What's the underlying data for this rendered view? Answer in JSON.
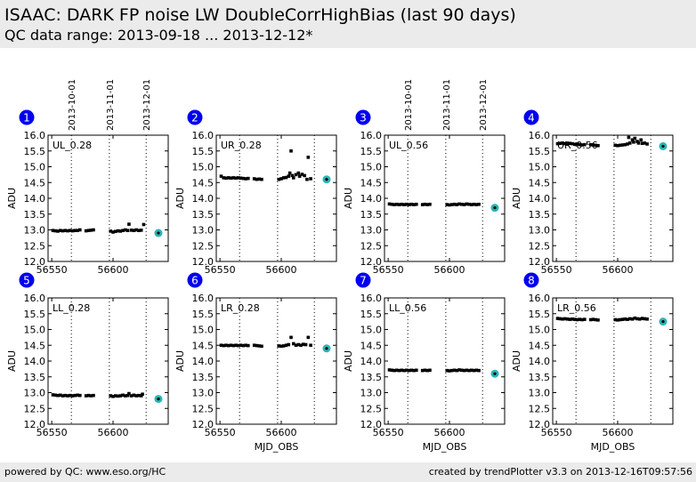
{
  "header": {
    "title": "ISAAC: DARK FP noise LW DoubleCorrHighBias (last 90 days)",
    "subtitle": "QC data range: 2013-09-18 ... 2013-12-12*"
  },
  "footer": {
    "left": "powered by QC: www.eso.org/HC",
    "right": "created by trendPlotter v3.3 on 2013-12-16T09:57:56"
  },
  "colors": {
    "points": "#000000",
    "latest": "#2ab5b5",
    "badge": "#0000ee"
  },
  "chart_data": {
    "type": "scatter",
    "xlabel": "MJD_OBS",
    "ylabel": "ADU",
    "xlim": [
      56547,
      56645
    ],
    "ylim": [
      12.0,
      16.0
    ],
    "xticks": [
      "56550",
      "56600"
    ],
    "xtick_values": [
      56550,
      56600
    ],
    "yticks": [
      "12.0",
      "12.5",
      "13.0",
      "13.5",
      "14.0",
      "14.5",
      "15.0",
      "15.5",
      "16.0"
    ],
    "date_markers": [
      {
        "label": "2013-10-01",
        "mjd": 56566
      },
      {
        "label": "2013-11-01",
        "mjd": 56597
      },
      {
        "label": "2013-12-01",
        "mjd": 56627
      }
    ],
    "panels": [
      {
        "badge": "1",
        "label": "UL_0.28",
        "show_dates": true,
        "show_xlabel": false,
        "points": [
          [
            56551,
            12.98
          ],
          [
            56553,
            12.97
          ],
          [
            56555,
            12.96
          ],
          [
            56557,
            12.98
          ],
          [
            56559,
            12.97
          ],
          [
            56561,
            12.98
          ],
          [
            56563,
            12.97
          ],
          [
            56565,
            12.98
          ],
          [
            56567,
            12.97
          ],
          [
            56569,
            12.98
          ],
          [
            56571,
            12.98
          ],
          [
            56573,
            13.0
          ],
          [
            56578,
            12.97
          ],
          [
            56580,
            12.98
          ],
          [
            56582,
            12.99
          ],
          [
            56584,
            13.0
          ],
          [
            56598,
            12.96
          ],
          [
            56600,
            12.93
          ],
          [
            56602,
            12.95
          ],
          [
            56604,
            12.97
          ],
          [
            56606,
            12.96
          ],
          [
            56608,
            12.98
          ],
          [
            56610,
            13.0
          ],
          [
            56612,
            12.98
          ],
          [
            56613,
            13.18
          ],
          [
            56615,
            12.99
          ],
          [
            56617,
            12.98
          ],
          [
            56619,
            13.0
          ],
          [
            56621,
            12.98
          ],
          [
            56623,
            12.99
          ],
          [
            56625,
            13.17
          ]
        ],
        "latest": [
          56637,
          12.9
        ]
      },
      {
        "badge": "2",
        "label": "UR_0.28",
        "show_dates": false,
        "show_xlabel": false,
        "points": [
          [
            56551,
            14.7
          ],
          [
            56553,
            14.65
          ],
          [
            56555,
            14.64
          ],
          [
            56557,
            14.65
          ],
          [
            56559,
            14.64
          ],
          [
            56561,
            14.65
          ],
          [
            56563,
            14.64
          ],
          [
            56565,
            14.65
          ],
          [
            56567,
            14.64
          ],
          [
            56569,
            14.63
          ],
          [
            56571,
            14.62
          ],
          [
            56573,
            14.63
          ],
          [
            56578,
            14.62
          ],
          [
            56580,
            14.6
          ],
          [
            56582,
            14.61
          ],
          [
            56584,
            14.6
          ],
          [
            56598,
            14.6
          ],
          [
            56600,
            14.62
          ],
          [
            56602,
            14.65
          ],
          [
            56604,
            14.66
          ],
          [
            56606,
            14.7
          ],
          [
            56607,
            14.8
          ],
          [
            56608,
            15.5
          ],
          [
            56609,
            14.72
          ],
          [
            56610,
            14.65
          ],
          [
            56612,
            14.75
          ],
          [
            56614,
            14.8
          ],
          [
            56615,
            14.7
          ],
          [
            56617,
            14.76
          ],
          [
            56619,
            14.72
          ],
          [
            56621,
            14.6
          ],
          [
            56622,
            15.3
          ],
          [
            56624,
            14.62
          ]
        ],
        "latest": [
          56637,
          14.6
        ]
      },
      {
        "badge": "3",
        "label": "UL_0.56",
        "show_dates": true,
        "show_xlabel": false,
        "points": [
          [
            56551,
            13.82
          ],
          [
            56553,
            13.81
          ],
          [
            56555,
            13.8
          ],
          [
            56557,
            13.81
          ],
          [
            56559,
            13.8
          ],
          [
            56561,
            13.81
          ],
          [
            56563,
            13.8
          ],
          [
            56565,
            13.81
          ],
          [
            56567,
            13.8
          ],
          [
            56569,
            13.81
          ],
          [
            56571,
            13.8
          ],
          [
            56573,
            13.81
          ],
          [
            56578,
            13.8
          ],
          [
            56580,
            13.81
          ],
          [
            56582,
            13.8
          ],
          [
            56584,
            13.81
          ],
          [
            56598,
            13.8
          ],
          [
            56600,
            13.79
          ],
          [
            56602,
            13.8
          ],
          [
            56604,
            13.81
          ],
          [
            56606,
            13.8
          ],
          [
            56608,
            13.82
          ],
          [
            56610,
            13.81
          ],
          [
            56612,
            13.8
          ],
          [
            56614,
            13.82
          ],
          [
            56616,
            13.81
          ],
          [
            56618,
            13.8
          ],
          [
            56620,
            13.81
          ],
          [
            56622,
            13.8
          ],
          [
            56624,
            13.81
          ]
        ],
        "latest": [
          56637,
          13.7
        ]
      },
      {
        "badge": "4",
        "label": "UR_0.56",
        "show_dates": false,
        "show_xlabel": false,
        "points": [
          [
            56551,
            15.73
          ],
          [
            56553,
            15.74
          ],
          [
            56555,
            15.75
          ],
          [
            56557,
            15.73
          ],
          [
            56559,
            15.72
          ],
          [
            56561,
            15.74
          ],
          [
            56563,
            15.73
          ],
          [
            56565,
            15.71
          ],
          [
            56567,
            15.72
          ],
          [
            56569,
            15.7
          ],
          [
            56571,
            15.69
          ],
          [
            56573,
            15.7
          ],
          [
            56578,
            15.7
          ],
          [
            56580,
            15.69
          ],
          [
            56582,
            15.68
          ],
          [
            56584,
            15.67
          ],
          [
            56598,
            15.68
          ],
          [
            56600,
            15.67
          ],
          [
            56602,
            15.68
          ],
          [
            56604,
            15.69
          ],
          [
            56606,
            15.7
          ],
          [
            56608,
            15.72
          ],
          [
            56609,
            15.93
          ],
          [
            56610,
            15.75
          ],
          [
            56612,
            15.85
          ],
          [
            56613,
            15.78
          ],
          [
            56614,
            15.9
          ],
          [
            56616,
            15.8
          ],
          [
            56617,
            15.75
          ],
          [
            56619,
            15.85
          ],
          [
            56620,
            15.74
          ],
          [
            56622,
            15.75
          ],
          [
            56624,
            15.72
          ]
        ],
        "latest": [
          56637,
          15.65
        ]
      },
      {
        "badge": "5",
        "label": "LL_0.28",
        "show_dates": false,
        "show_xlabel": false,
        "points": [
          [
            56551,
            12.93
          ],
          [
            56553,
            12.92
          ],
          [
            56555,
            12.91
          ],
          [
            56557,
            12.92
          ],
          [
            56559,
            12.9
          ],
          [
            56561,
            12.91
          ],
          [
            56563,
            12.9
          ],
          [
            56565,
            12.91
          ],
          [
            56567,
            12.9
          ],
          [
            56569,
            12.91
          ],
          [
            56571,
            12.92
          ],
          [
            56573,
            12.91
          ],
          [
            56578,
            12.9
          ],
          [
            56580,
            12.91
          ],
          [
            56582,
            12.9
          ],
          [
            56584,
            12.91
          ],
          [
            56598,
            12.9
          ],
          [
            56600,
            12.88
          ],
          [
            56602,
            12.9
          ],
          [
            56604,
            12.89
          ],
          [
            56606,
            12.9
          ],
          [
            56608,
            12.92
          ],
          [
            56610,
            12.9
          ],
          [
            56612,
            12.91
          ],
          [
            56613,
            12.97
          ],
          [
            56615,
            12.9
          ],
          [
            56617,
            12.92
          ],
          [
            56619,
            12.9
          ],
          [
            56621,
            12.91
          ],
          [
            56623,
            12.9
          ],
          [
            56624,
            12.95
          ]
        ],
        "latest": [
          56637,
          12.8
        ]
      },
      {
        "badge": "6",
        "label": "LR_0.28",
        "show_dates": false,
        "show_xlabel": true,
        "points": [
          [
            56551,
            14.5
          ],
          [
            56553,
            14.49
          ],
          [
            56555,
            14.5
          ],
          [
            56557,
            14.49
          ],
          [
            56559,
            14.5
          ],
          [
            56561,
            14.49
          ],
          [
            56563,
            14.5
          ],
          [
            56565,
            14.49
          ],
          [
            56567,
            14.5
          ],
          [
            56569,
            14.49
          ],
          [
            56571,
            14.5
          ],
          [
            56573,
            14.49
          ],
          [
            56578,
            14.5
          ],
          [
            56580,
            14.49
          ],
          [
            56582,
            14.48
          ],
          [
            56584,
            14.47
          ],
          [
            56598,
            14.48
          ],
          [
            56600,
            14.47
          ],
          [
            56602,
            14.48
          ],
          [
            56604,
            14.5
          ],
          [
            56606,
            14.52
          ],
          [
            56608,
            14.75
          ],
          [
            56610,
            14.55
          ],
          [
            56612,
            14.5
          ],
          [
            56614,
            14.52
          ],
          [
            56616,
            14.5
          ],
          [
            56618,
            14.53
          ],
          [
            56620,
            14.52
          ],
          [
            56622,
            14.75
          ],
          [
            56624,
            14.5
          ]
        ],
        "latest": [
          56637,
          14.4
        ]
      },
      {
        "badge": "7",
        "label": "LL_0.56",
        "show_dates": false,
        "show_xlabel": true,
        "points": [
          [
            56551,
            13.72
          ],
          [
            56553,
            13.71
          ],
          [
            56555,
            13.7
          ],
          [
            56557,
            13.71
          ],
          [
            56559,
            13.7
          ],
          [
            56561,
            13.71
          ],
          [
            56563,
            13.7
          ],
          [
            56565,
            13.71
          ],
          [
            56567,
            13.7
          ],
          [
            56569,
            13.71
          ],
          [
            56571,
            13.7
          ],
          [
            56573,
            13.71
          ],
          [
            56578,
            13.7
          ],
          [
            56580,
            13.71
          ],
          [
            56582,
            13.7
          ],
          [
            56584,
            13.71
          ],
          [
            56598,
            13.7
          ],
          [
            56600,
            13.69
          ],
          [
            56602,
            13.7
          ],
          [
            56604,
            13.71
          ],
          [
            56606,
            13.7
          ],
          [
            56608,
            13.72
          ],
          [
            56610,
            13.71
          ],
          [
            56612,
            13.7
          ],
          [
            56614,
            13.71
          ],
          [
            56616,
            13.7
          ],
          [
            56618,
            13.71
          ],
          [
            56620,
            13.7
          ],
          [
            56622,
            13.71
          ],
          [
            56624,
            13.7
          ]
        ],
        "latest": [
          56637,
          13.6
        ]
      },
      {
        "badge": "8",
        "label": "LR_0.56",
        "show_dates": false,
        "show_xlabel": true,
        "points": [
          [
            56551,
            15.35
          ],
          [
            56553,
            15.34
          ],
          [
            56555,
            15.33
          ],
          [
            56557,
            15.34
          ],
          [
            56559,
            15.33
          ],
          [
            56561,
            15.32
          ],
          [
            56563,
            15.33
          ],
          [
            56565,
            15.32
          ],
          [
            56567,
            15.31
          ],
          [
            56569,
            15.32
          ],
          [
            56571,
            15.31
          ],
          [
            56573,
            15.32
          ],
          [
            56578,
            15.31
          ],
          [
            56580,
            15.32
          ],
          [
            56582,
            15.31
          ],
          [
            56584,
            15.3
          ],
          [
            56598,
            15.31
          ],
          [
            56600,
            15.3
          ],
          [
            56602,
            15.31
          ],
          [
            56604,
            15.32
          ],
          [
            56606,
            15.33
          ],
          [
            56608,
            15.32
          ],
          [
            56610,
            15.34
          ],
          [
            56612,
            15.33
          ],
          [
            56614,
            15.36
          ],
          [
            56616,
            15.34
          ],
          [
            56618,
            15.33
          ],
          [
            56620,
            15.35
          ],
          [
            56622,
            15.34
          ],
          [
            56624,
            15.33
          ]
        ],
        "latest": [
          56637,
          15.25
        ]
      }
    ]
  }
}
